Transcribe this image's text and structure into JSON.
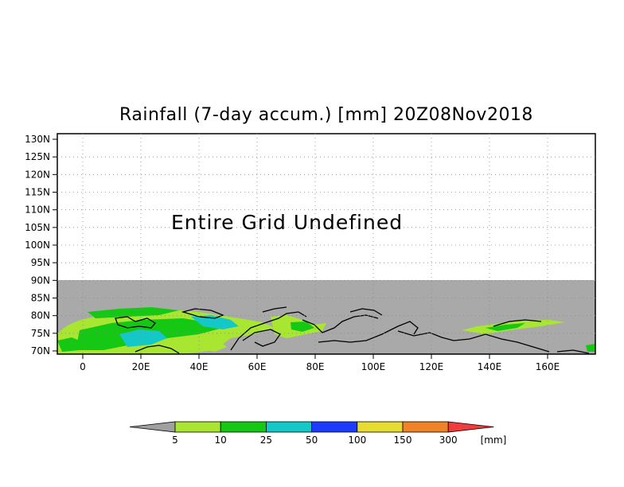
{
  "title": "Rainfall (7-day accum.) [mm] 20Z08Nov2018",
  "message": "Entire Grid Undefined",
  "lat_ticks": [
    "130N",
    "125N",
    "120N",
    "115N",
    "110N",
    "105N",
    "100N",
    "95N",
    "90N",
    "85N",
    "80N",
    "75N",
    "70N"
  ],
  "lon_ticks": [
    "0",
    "20E",
    "40E",
    "60E",
    "80E",
    "100E",
    "120E",
    "140E",
    "160E"
  ],
  "colorbar": {
    "labels": [
      "5",
      "10",
      "25",
      "50",
      "100",
      "150",
      "300"
    ],
    "unit": "[mm]",
    "colors": [
      "#a8e632",
      "#14c814",
      "#14c8c8",
      "#1e3cff",
      "#e6dc32",
      "#f08228",
      "#f03c3c"
    ],
    "under_color": "#a0a0a0"
  },
  "map": {
    "undefined_color": "#a9a9a9",
    "lon_range": [
      -8,
      175
    ],
    "lat_range": [
      69,
      131
    ]
  }
}
